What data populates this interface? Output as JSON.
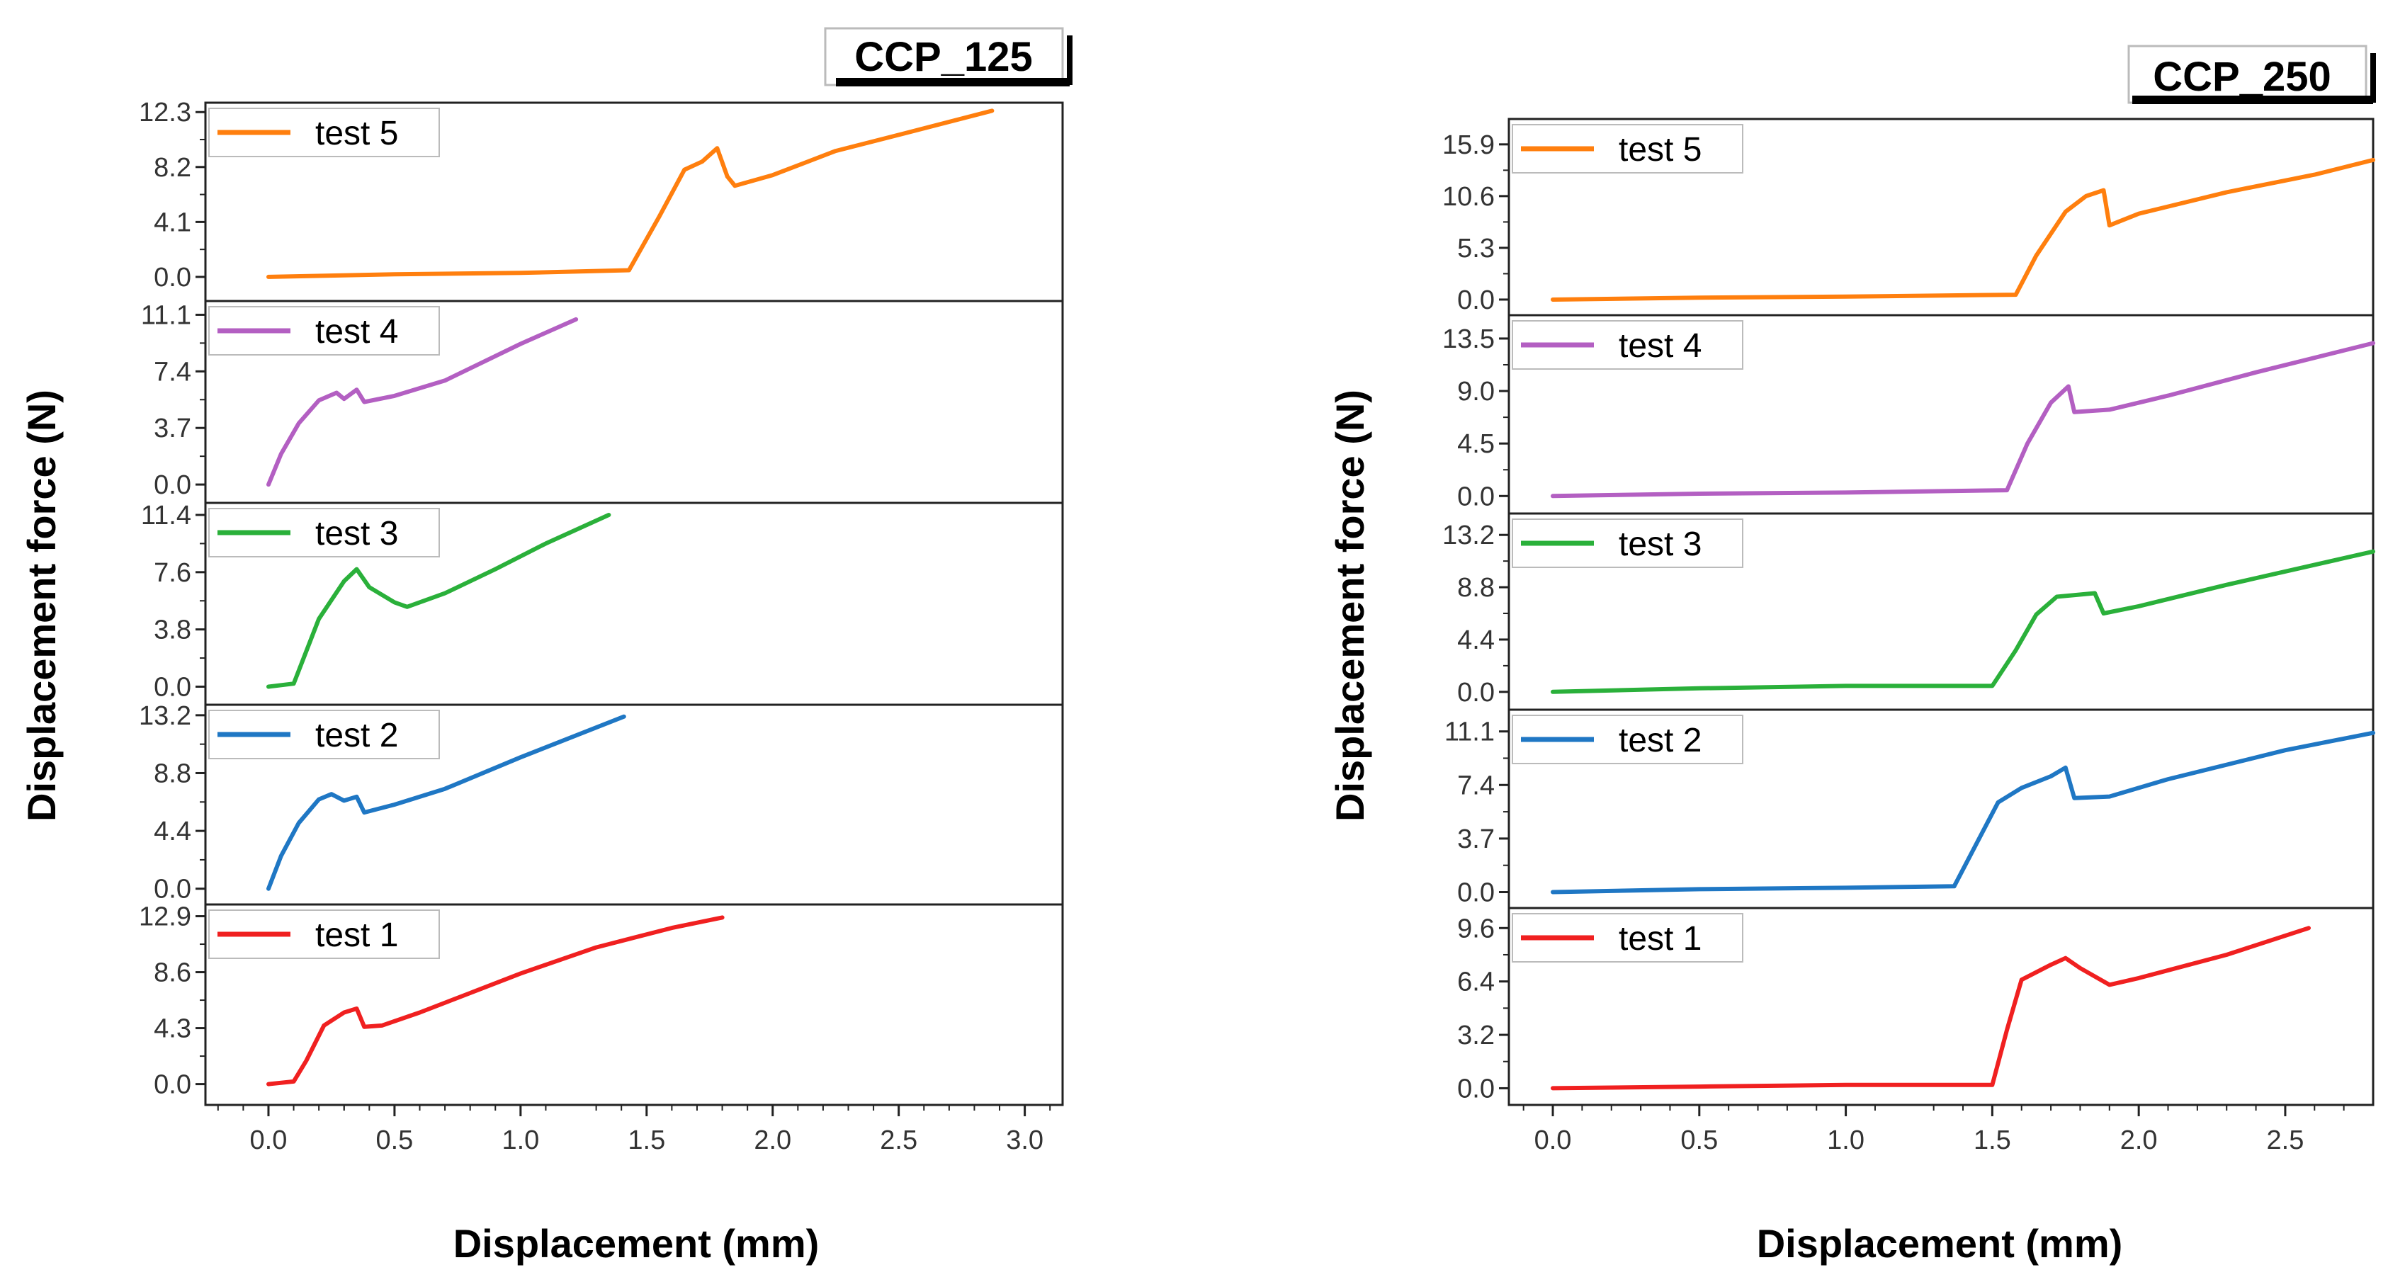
{
  "chart_data": [
    {
      "type": "line",
      "title": "CCP_125",
      "xlabel": "Displacement (mm)",
      "ylabel": "Displacement force (N)",
      "xlim": [
        -0.25,
        3.15
      ],
      "x_ticks": [
        "0.0",
        "0.5",
        "1.0",
        "1.5",
        "2.0",
        "2.5",
        "3.0"
      ],
      "x_tick_values": [
        0,
        0.5,
        1.0,
        1.5,
        2.0,
        2.5,
        3.0
      ],
      "panels": [
        {
          "name": "test 5",
          "color": "#ff7f0e",
          "ylim": [
            -1.8,
            13.0
          ],
          "y_ticks": [
            "0.0",
            "4.1",
            "8.2",
            "12.3"
          ],
          "y_tick_values": [
            0,
            4.1,
            8.2,
            12.3
          ],
          "points": [
            [
              0,
              0
            ],
            [
              0.5,
              0.2
            ],
            [
              1.0,
              0.3
            ],
            [
              1.43,
              0.5
            ],
            [
              1.55,
              4.5
            ],
            [
              1.65,
              8.0
            ],
            [
              1.72,
              8.6
            ],
            [
              1.78,
              9.6
            ],
            [
              1.82,
              7.5
            ],
            [
              1.85,
              6.8
            ],
            [
              2.0,
              7.6
            ],
            [
              2.25,
              9.4
            ],
            [
              2.5,
              10.6
            ],
            [
              2.87,
              12.4
            ]
          ]
        },
        {
          "name": "test 4",
          "color": "#b35fc2",
          "ylim": [
            -1.2,
            12.0
          ],
          "y_ticks": [
            "0.0",
            "3.7",
            "7.4",
            "11.1"
          ],
          "y_tick_values": [
            0,
            3.7,
            7.4,
            11.1
          ],
          "points": [
            [
              0,
              0
            ],
            [
              0.05,
              2.0
            ],
            [
              0.12,
              4.0
            ],
            [
              0.2,
              5.5
            ],
            [
              0.27,
              6.0
            ],
            [
              0.3,
              5.6
            ],
            [
              0.35,
              6.2
            ],
            [
              0.38,
              5.4
            ],
            [
              0.5,
              5.8
            ],
            [
              0.7,
              6.8
            ],
            [
              1.0,
              9.2
            ],
            [
              1.22,
              10.8
            ]
          ]
        },
        {
          "name": "test 3",
          "color": "#2ab03a",
          "ylim": [
            -1.2,
            12.2
          ],
          "y_ticks": [
            "0.0",
            "3.8",
            "7.6",
            "11.4"
          ],
          "y_tick_values": [
            0,
            3.8,
            7.6,
            11.4
          ],
          "points": [
            [
              0,
              0
            ],
            [
              0.1,
              0.2
            ],
            [
              0.2,
              4.5
            ],
            [
              0.3,
              7.0
            ],
            [
              0.35,
              7.8
            ],
            [
              0.4,
              6.6
            ],
            [
              0.5,
              5.6
            ],
            [
              0.55,
              5.3
            ],
            [
              0.7,
              6.2
            ],
            [
              0.9,
              7.8
            ],
            [
              1.1,
              9.5
            ],
            [
              1.35,
              11.4
            ]
          ]
        },
        {
          "name": "test 2",
          "color": "#1f77c4",
          "ylim": [
            -1.2,
            14.0
          ],
          "y_ticks": [
            "0.0",
            "4.4",
            "8.8",
            "13.2"
          ],
          "y_tick_values": [
            0,
            4.4,
            8.8,
            13.2
          ],
          "points": [
            [
              0,
              0
            ],
            [
              0.05,
              2.5
            ],
            [
              0.12,
              5.0
            ],
            [
              0.2,
              6.8
            ],
            [
              0.25,
              7.2
            ],
            [
              0.3,
              6.7
            ],
            [
              0.35,
              7.0
            ],
            [
              0.38,
              5.8
            ],
            [
              0.5,
              6.4
            ],
            [
              0.7,
              7.6
            ],
            [
              1.0,
              10.0
            ],
            [
              1.41,
              13.1
            ]
          ]
        },
        {
          "name": "test 1",
          "color": "#f02020",
          "ylim": [
            -1.6,
            13.8
          ],
          "y_ticks": [
            "0.0",
            "4.3",
            "8.6",
            "12.9"
          ],
          "y_tick_values": [
            0,
            4.3,
            8.6,
            12.9
          ],
          "points": [
            [
              0,
              0
            ],
            [
              0.1,
              0.2
            ],
            [
              0.15,
              1.8
            ],
            [
              0.22,
              4.5
            ],
            [
              0.3,
              5.5
            ],
            [
              0.35,
              5.8
            ],
            [
              0.38,
              4.4
            ],
            [
              0.45,
              4.5
            ],
            [
              0.6,
              5.5
            ],
            [
              0.8,
              7.0
            ],
            [
              1.0,
              8.5
            ],
            [
              1.3,
              10.5
            ],
            [
              1.6,
              12.0
            ],
            [
              1.8,
              12.8
            ]
          ]
        }
      ]
    },
    {
      "type": "line",
      "title": "CCP_250",
      "xlabel": "Displacement (mm)",
      "ylabel": "Displacement force (N)",
      "xlim": [
        -0.15,
        2.8
      ],
      "x_ticks": [
        "0.0",
        "0.5",
        "1.0",
        "1.5",
        "2.0",
        "2.5"
      ],
      "x_tick_values": [
        0,
        0.5,
        1.0,
        1.5,
        2.0,
        2.5
      ],
      "panels": [
        {
          "name": "test 5",
          "color": "#ff7f0e",
          "ylim": [
            -1.6,
            18.5
          ],
          "y_ticks": [
            "0.0",
            "5.3",
            "10.6",
            "15.9"
          ],
          "y_tick_values": [
            0,
            5.3,
            10.6,
            15.9
          ],
          "points": [
            [
              0,
              0
            ],
            [
              0.5,
              0.2
            ],
            [
              1.0,
              0.3
            ],
            [
              1.58,
              0.5
            ],
            [
              1.65,
              4.5
            ],
            [
              1.75,
              9.0
            ],
            [
              1.82,
              10.6
            ],
            [
              1.88,
              11.2
            ],
            [
              1.9,
              7.6
            ],
            [
              2.0,
              8.8
            ],
            [
              2.3,
              11.0
            ],
            [
              2.6,
              12.8
            ],
            [
              2.8,
              14.3
            ]
          ]
        },
        {
          "name": "test 4",
          "color": "#b35fc2",
          "ylim": [
            -1.5,
            15.5
          ],
          "y_ticks": [
            "0.0",
            "4.5",
            "9.0",
            "13.5"
          ],
          "y_tick_values": [
            0,
            4.5,
            9.0,
            13.5
          ],
          "points": [
            [
              0,
              0
            ],
            [
              0.5,
              0.2
            ],
            [
              1.0,
              0.3
            ],
            [
              1.55,
              0.5
            ],
            [
              1.62,
              4.5
            ],
            [
              1.7,
              8.0
            ],
            [
              1.76,
              9.4
            ],
            [
              1.78,
              7.2
            ],
            [
              1.9,
              7.4
            ],
            [
              2.1,
              8.6
            ],
            [
              2.4,
              10.6
            ],
            [
              2.8,
              13.1
            ]
          ]
        },
        {
          "name": "test 3",
          "color": "#2ab03a",
          "ylim": [
            -1.5,
            15.0
          ],
          "y_ticks": [
            "0.0",
            "4.4",
            "8.8",
            "13.2"
          ],
          "y_tick_values": [
            0,
            4.4,
            8.8,
            13.2
          ],
          "points": [
            [
              0,
              0
            ],
            [
              0.5,
              0.3
            ],
            [
              1.0,
              0.5
            ],
            [
              1.5,
              0.5
            ],
            [
              1.58,
              3.5
            ],
            [
              1.65,
              6.5
            ],
            [
              1.72,
              8.0
            ],
            [
              1.85,
              8.3
            ],
            [
              1.88,
              6.6
            ],
            [
              2.0,
              7.2
            ],
            [
              2.3,
              9.0
            ],
            [
              2.8,
              11.8
            ]
          ]
        },
        {
          "name": "test 2",
          "color": "#1f77c4",
          "ylim": [
            -1.1,
            12.6
          ],
          "y_ticks": [
            "0.0",
            "3.7",
            "7.4",
            "11.1"
          ],
          "y_tick_values": [
            0,
            3.7,
            7.4,
            11.1
          ],
          "points": [
            [
              0,
              0
            ],
            [
              0.5,
              0.2
            ],
            [
              1.0,
              0.3
            ],
            [
              1.37,
              0.4
            ],
            [
              1.45,
              3.5
            ],
            [
              1.52,
              6.2
            ],
            [
              1.6,
              7.2
            ],
            [
              1.7,
              8.0
            ],
            [
              1.75,
              8.6
            ],
            [
              1.78,
              6.5
            ],
            [
              1.9,
              6.6
            ],
            [
              2.1,
              7.8
            ],
            [
              2.5,
              9.8
            ],
            [
              2.8,
              11.0
            ]
          ]
        },
        {
          "name": "test 1",
          "color": "#f02020",
          "ylim": [
            -1.0,
            10.8
          ],
          "y_ticks": [
            "0.0",
            "3.2",
            "6.4",
            "9.6"
          ],
          "y_tick_values": [
            0,
            3.2,
            6.4,
            9.6
          ],
          "points": [
            [
              0,
              0
            ],
            [
              0.5,
              0.1
            ],
            [
              1.0,
              0.2
            ],
            [
              1.5,
              0.2
            ],
            [
              1.55,
              3.5
            ],
            [
              1.6,
              6.5
            ],
            [
              1.7,
              7.4
            ],
            [
              1.75,
              7.8
            ],
            [
              1.8,
              7.2
            ],
            [
              1.9,
              6.2
            ],
            [
              2.0,
              6.6
            ],
            [
              2.3,
              8.0
            ],
            [
              2.58,
              9.6
            ]
          ]
        }
      ]
    }
  ]
}
